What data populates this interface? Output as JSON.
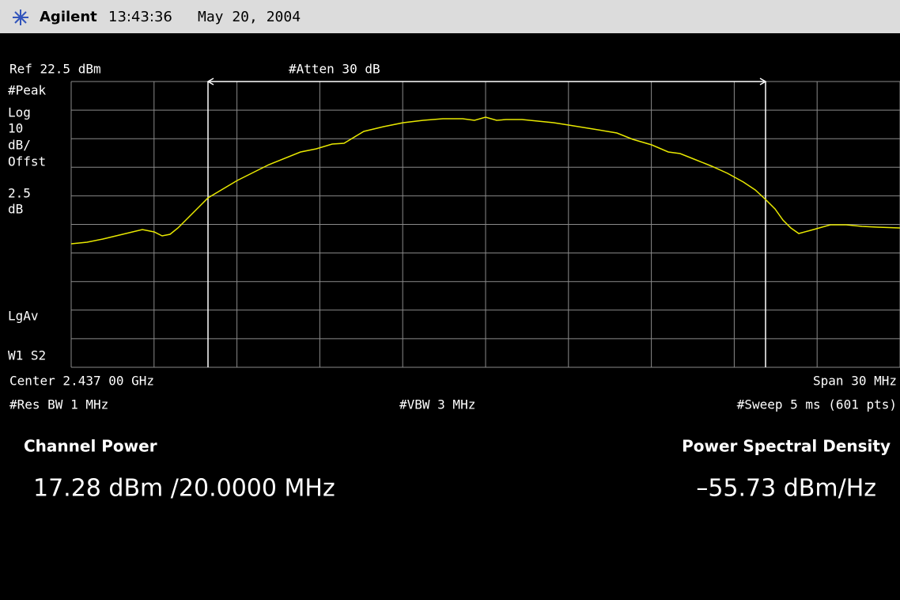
{
  "header": {
    "brand": "Agilent",
    "time": "13:43:36",
    "date": "May 20, 2004"
  },
  "settings": {
    "ref": "Ref 22.5 dBm",
    "atten": "#Atten 30 dB",
    "left_labels": [
      "#Peak",
      "Log",
      "10",
      "dB/",
      "Offst",
      "2.5",
      "dB",
      "LgAv",
      "W1  S2"
    ],
    "center": "Center 2.437 00 GHz",
    "span": "Span 30 MHz",
    "res_bw": "#Res BW 1 MHz",
    "vbw": "#VBW 3 MHz",
    "sweep": "#Sweep 5 ms (601 pts)"
  },
  "results": {
    "channel_power_label": "Channel Power",
    "channel_power_value": "17.28 dBm /20.0000 MHz",
    "psd_label": "Power Spectral Density",
    "psd_value": "–55.73 dBm/Hz"
  }
}
